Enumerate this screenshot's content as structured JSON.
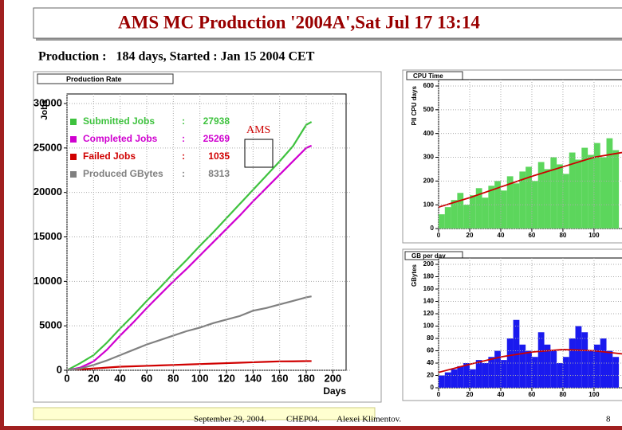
{
  "slide": {
    "title": "AMS MC Production '2004A',Sat Jul 17 13:14",
    "subtitle": "Production :   184 days, Started : Jan 15 2004 CET",
    "footer": [
      "September  29, 2004.",
      "CHEP04.",
      "Alexei Klimentov."
    ],
    "page": "8"
  },
  "chart_data": [
    {
      "type": "line",
      "title": "Production Rate",
      "y_label": "Jobs",
      "x_label": "Days",
      "annotation": "AMS",
      "separator": ":",
      "x": [
        0,
        10,
        20,
        30,
        40,
        50,
        60,
        70,
        80,
        90,
        100,
        110,
        120,
        130,
        140,
        150,
        160,
        170,
        180,
        184
      ],
      "xlim": [
        0,
        210
      ],
      "xticks": [
        0,
        20,
        40,
        60,
        80,
        100,
        120,
        140,
        160,
        180,
        200
      ],
      "ylim": [
        0,
        30000
      ],
      "yticks": [
        0,
        5000,
        10000,
        15000,
        20000,
        25000,
        30000
      ],
      "grid": true,
      "series": [
        {
          "name": "Submitted Jobs",
          "total": 27938,
          "color": "#3ec23e",
          "values": [
            0,
            800,
            1700,
            3100,
            4700,
            6200,
            7800,
            9300,
            10900,
            12400,
            14000,
            15500,
            17100,
            18700,
            20300,
            21900,
            23500,
            25200,
            27600,
            27938
          ]
        },
        {
          "name": "Completed Jobs",
          "total": 25269,
          "color": "#d000d0",
          "values": [
            0,
            300,
            1000,
            2300,
            3900,
            5400,
            7000,
            8500,
            10000,
            11400,
            12900,
            14400,
            15900,
            17400,
            19000,
            20500,
            22000,
            23500,
            25000,
            25269
          ]
        },
        {
          "name": "Failed Jobs",
          "total": 1035,
          "color": "#d00000",
          "values": [
            0,
            100,
            200,
            300,
            400,
            450,
            500,
            550,
            600,
            650,
            700,
            750,
            800,
            850,
            900,
            950,
            1000,
            1010,
            1030,
            1035
          ]
        },
        {
          "name": "Produced GBytes",
          "total": 8313,
          "color": "#808080",
          "values": [
            0,
            200,
            600,
            1100,
            1700,
            2300,
            2900,
            3400,
            3900,
            4400,
            4800,
            5300,
            5700,
            6100,
            6700,
            7000,
            7400,
            7800,
            8200,
            8313
          ]
        }
      ]
    },
    {
      "type": "histogram",
      "title": "CPU Time",
      "y_label": "PII CPU days",
      "color": "#5cd65c",
      "bins": [
        0,
        4,
        8,
        12,
        16,
        20,
        24,
        28,
        32,
        36,
        40,
        44,
        48,
        52,
        56,
        60,
        64,
        68,
        72,
        76,
        80,
        84,
        88,
        92,
        96,
        100,
        104,
        108,
        112,
        116
      ],
      "values": [
        60,
        90,
        120,
        150,
        100,
        140,
        170,
        130,
        180,
        200,
        160,
        220,
        190,
        240,
        260,
        200,
        280,
        250,
        300,
        270,
        230,
        320,
        290,
        340,
        310,
        360,
        300,
        380,
        330
      ],
      "fit": {
        "color": "#cc0000",
        "x": [
          0,
          20,
          40,
          60,
          80,
          100,
          118
        ],
        "values": [
          90,
          130,
          175,
          220,
          260,
          300,
          320
        ]
      },
      "xlim": [
        0,
        118
      ],
      "xticks": [
        0,
        20,
        40,
        60,
        80,
        100
      ],
      "ylim": [
        0,
        600
      ],
      "yticks": [
        0,
        100,
        200,
        300,
        400,
        500,
        600
      ],
      "grid": true
    },
    {
      "type": "histogram",
      "title": "GB per day",
      "y_label": "GBytes",
      "color": "#1a1aee",
      "bins": [
        0,
        4,
        8,
        12,
        16,
        20,
        24,
        28,
        32,
        36,
        40,
        44,
        48,
        52,
        56,
        60,
        64,
        68,
        72,
        76,
        80,
        84,
        88,
        92,
        96,
        100,
        104,
        108,
        112,
        116
      ],
      "values": [
        20,
        25,
        30,
        35,
        40,
        30,
        45,
        40,
        50,
        60,
        45,
        80,
        110,
        70,
        60,
        50,
        90,
        70,
        60,
        40,
        50,
        80,
        100,
        90,
        60,
        70,
        80,
        60,
        50
      ],
      "fit": {
        "color": "#cc0000",
        "x": [
          0,
          20,
          40,
          60,
          80,
          100,
          118
        ],
        "values": [
          25,
          38,
          50,
          58,
          62,
          60,
          55
        ]
      },
      "xlim": [
        0,
        118
      ],
      "xticks": [
        0,
        20,
        40,
        60,
        80,
        100
      ],
      "ylim": [
        0,
        200
      ],
      "yticks": [
        0,
        20,
        40,
        60,
        80,
        100,
        120,
        140,
        160,
        180,
        200
      ],
      "grid": true
    }
  ]
}
